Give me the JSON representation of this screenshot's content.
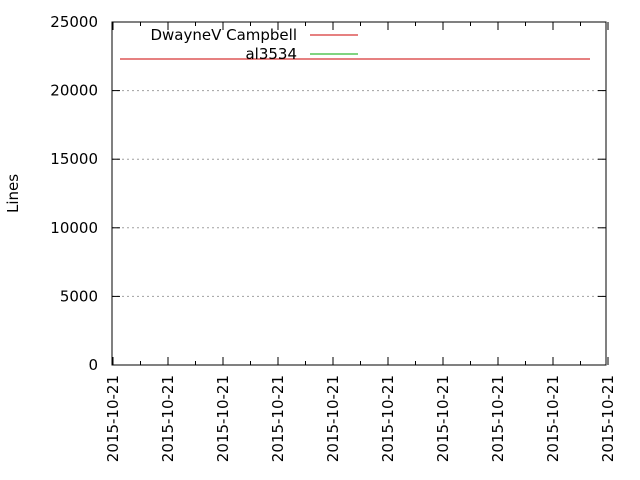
{
  "chart_data": {
    "type": "line",
    "ylabel": "Lines",
    "ylim": [
      0,
      25000
    ],
    "yticks": [
      0,
      5000,
      10000,
      15000,
      20000,
      25000
    ],
    "xtick_labels": [
      "2015-10-21",
      "2015-10-21",
      "2015-10-21",
      "2015-10-21",
      "2015-10-21",
      "2015-10-21",
      "2015-10-21",
      "2015-10-21",
      "2015-10-21",
      "2015-10-21"
    ],
    "grid": "horizontal",
    "legend_placement": "top-left",
    "series": [
      {
        "name": "DwayneV Campbell",
        "color": "#cc0000",
        "values": [
          22300,
          22300
        ]
      },
      {
        "name": "al3534",
        "color": "#00aa00",
        "values": []
      }
    ]
  }
}
